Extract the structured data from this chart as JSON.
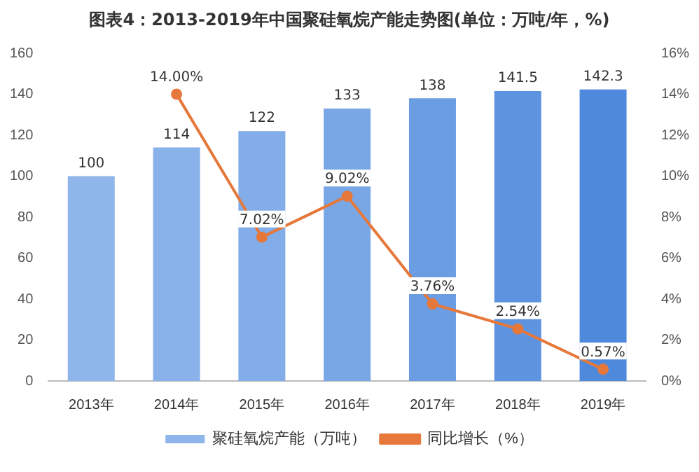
{
  "chart_data": {
    "type": "bar",
    "title": "图表4：2013-2019年中国聚硅氧烷产能走势图(单位：万吨/年，%)",
    "categories": [
      "2013年",
      "2014年",
      "2015年",
      "2016年",
      "2017年",
      "2018年",
      "2019年"
    ],
    "series": [
      {
        "name": "聚硅氧烷产能（万吨）",
        "colors": [
          "#8fb6ea",
          "#89b2ea",
          "#82ade8",
          "#79a7e6",
          "#6b9de2",
          "#5d93df",
          "#4f89db"
        ],
        "values": [
          100,
          114,
          122,
          133,
          138,
          141.5,
          142.3
        ],
        "value_labels": [
          "100",
          "114",
          "122",
          "133",
          "138",
          "141.5",
          "142.3"
        ]
      },
      {
        "name": "同比增长（%）",
        "type": "line",
        "axis": "y2",
        "color": "#e5783a",
        "values": [
          null,
          14.0,
          7.02,
          9.02,
          3.76,
          2.54,
          0.57
        ],
        "value_labels": [
          null,
          "14.00%",
          "7.02%",
          "9.02%",
          "3.76%",
          "2.54%",
          "0.57%"
        ]
      }
    ],
    "ylim": [
      0,
      160
    ],
    "yticks": [
      0,
      20,
      40,
      60,
      80,
      100,
      120,
      140,
      160
    ],
    "y2lim": [
      0,
      16
    ],
    "y2ticks": [
      {
        "value": 0,
        "label": "0%"
      },
      {
        "value": 2,
        "label": "2%"
      },
      {
        "value": 4,
        "label": "4%"
      },
      {
        "value": 6,
        "label": "6%"
      },
      {
        "value": 8,
        "label": "8%"
      },
      {
        "value": 10,
        "label": "10%"
      },
      {
        "value": 12,
        "label": "12%"
      },
      {
        "value": 14,
        "label": "14%"
      },
      {
        "value": 16,
        "label": "16%"
      }
    ],
    "grid": false,
    "legend": "bottom",
    "marker": "circle",
    "line_style": "solid"
  }
}
